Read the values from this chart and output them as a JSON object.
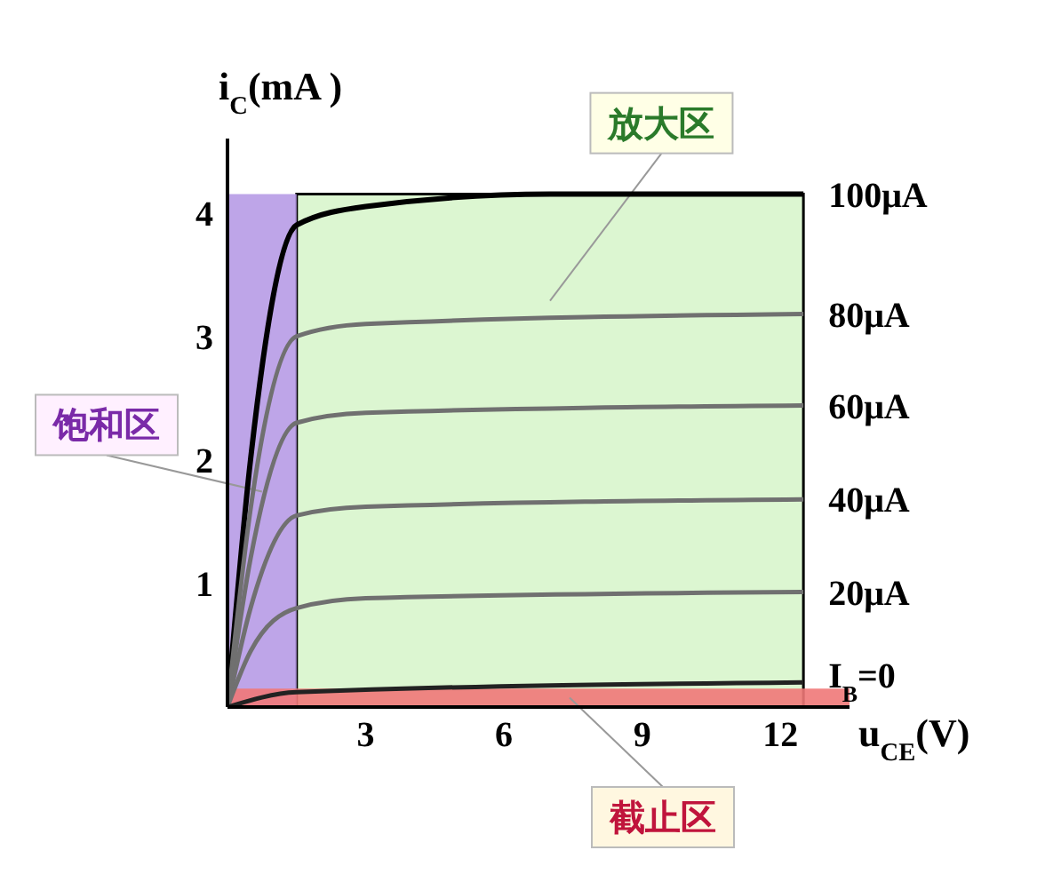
{
  "chart_data": {
    "type": "line",
    "xlabel": "u$_{CE}$(V)",
    "ylabel": "i$_{C}$(mA )",
    "xlim": [
      0,
      13.5
    ],
    "ylim": [
      0,
      4.6
    ],
    "xticks": [
      3,
      6,
      9,
      12
    ],
    "yticks": [
      1,
      2,
      3,
      4
    ],
    "marker": "none",
    "line_style": "solid",
    "grid": false,
    "series": [
      {
        "name": "100μA",
        "color": "#000000",
        "x": [
          0,
          0.5,
          1.5,
          3,
          7,
          12.5
        ],
        "values": [
          0,
          2.0,
          3.9,
          4.05,
          4.15,
          4.15
        ]
      },
      {
        "name": "80μA",
        "color": "#707070",
        "x": [
          0,
          0.5,
          1.5,
          3,
          12.5
        ],
        "values": [
          0,
          1.6,
          3.0,
          3.1,
          3.18
        ]
      },
      {
        "name": "60μA",
        "color": "#707070",
        "x": [
          0,
          0.5,
          1.5,
          3,
          12.5
        ],
        "values": [
          0,
          1.2,
          2.3,
          2.38,
          2.44
        ]
      },
      {
        "name": "40μA",
        "color": "#707070",
        "x": [
          0,
          0.5,
          1.5,
          3,
          12.5
        ],
        "values": [
          0,
          0.8,
          1.55,
          1.62,
          1.68
        ]
      },
      {
        "name": "20μA",
        "color": "#707070",
        "x": [
          0,
          0.5,
          1.5,
          3,
          12.5
        ],
        "values": [
          0,
          0.45,
          0.8,
          0.88,
          0.93
        ]
      },
      {
        "name": "I$_{B}$=0",
        "color": "#222222",
        "x": [
          0,
          1.5,
          12.5
        ],
        "values": [
          0,
          0.12,
          0.2
        ]
      }
    ],
    "bands": [
      {
        "axis": "x",
        "from": 1.5,
        "to": 12.5,
        "label": "放大区",
        "color": "#d8f5cc"
      },
      {
        "axis": "x",
        "from": 0,
        "to": 1.5,
        "label": "饱和区",
        "color": "#b79be6"
      },
      {
        "axis": "y",
        "from": 0,
        "to": 0.15,
        "label": "截止区",
        "color": "#f07878"
      }
    ]
  }
}
